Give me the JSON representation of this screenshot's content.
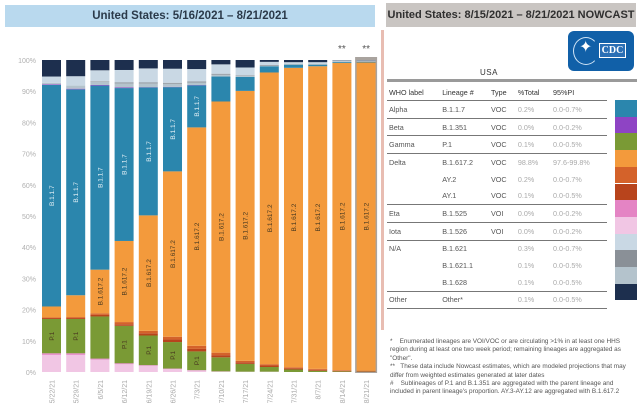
{
  "left_panel": {
    "title": "United States: 5/16/2021 – 8/21/2021",
    "nowcast_marker": "**"
  },
  "right_panel": {
    "title": "United States: 8/15/2021 – 8/21/2021 NOWCAST",
    "region": "USA",
    "logo_text": "CDC",
    "table": {
      "headers": [
        "WHO label",
        "Lineage #",
        "Type",
        "%Total",
        "95%PI"
      ],
      "rows": [
        {
          "who": "Alpha",
          "lineage": "B.1.1.7",
          "type": "VOC",
          "pct": "0.2%",
          "pi": "0.0-0.7%",
          "color": "#2b86ad",
          "group_start": true
        },
        {
          "who": "Beta",
          "lineage": "B.1.351",
          "type": "VOC",
          "pct": "0.0%",
          "pi": "0.0-0.2%",
          "color": "#8e44c4",
          "group_start": true
        },
        {
          "who": "Gamma",
          "lineage": "P.1",
          "type": "VOC",
          "pct": "0.1%",
          "pi": "0.0-0.5%",
          "color": "#7a9a35",
          "group_start": true
        },
        {
          "who": "Delta",
          "lineage": "B.1.617.2",
          "type": "VOC",
          "pct": "98.8%",
          "pi": "97.6-99.8%",
          "color": "#f39a3c",
          "group_start": true
        },
        {
          "who": "",
          "lineage": "AY.2",
          "type": "VOC",
          "pct": "0.2%",
          "pi": "0.0-0.7%",
          "color": "#d4622a",
          "group_start": false
        },
        {
          "who": "",
          "lineage": "AY.1",
          "type": "VOC",
          "pct": "0.1%",
          "pi": "0.0-0.5%",
          "color": "#b8441c",
          "group_start": false
        },
        {
          "who": "Eta",
          "lineage": "B.1.525",
          "type": "VOI",
          "pct": "0.0%",
          "pi": "0.0-0.2%",
          "color": "#e484c4",
          "group_start": true
        },
        {
          "who": "Iota",
          "lineage": "B.1.526",
          "type": "VOI",
          "pct": "0.0%",
          "pi": "0.0-0.2%",
          "color": "#f1c6e4",
          "group_start": true
        },
        {
          "who": "N/A",
          "lineage": "B.1.621",
          "type": "",
          "pct": "0.3%",
          "pi": "0.0-0.7%",
          "color": "#c9d8e4",
          "group_start": true
        },
        {
          "who": "",
          "lineage": "B.1.621.1",
          "type": "",
          "pct": "0.1%",
          "pi": "0.0-0.5%",
          "color": "#8a9097",
          "group_start": false
        },
        {
          "who": "",
          "lineage": "B.1.628",
          "type": "",
          "pct": "0.1%",
          "pi": "0.0-0.5%",
          "color": "#b4c3cc",
          "group_start": false
        },
        {
          "who": "Other",
          "lineage": "Other*",
          "type": "",
          "pct": "0.1%",
          "pi": "0.0-0.5%",
          "color": "#1d2f4e",
          "group_start": true
        }
      ]
    },
    "footnotes": [
      "*    Enumerated lineages are VOI/VOC or are circulating >1% in at least one HHS region during at least one two week period; remaining lineages are aggregated as \"Other\".",
      "**   These data include Nowcast estimates, which are modeled projections that may differ from weighted estimates generated at later dates",
      "#    Sublineages of P.1 and B.1.351 are aggregated with the parent lineage and included in parent lineage's proportion. AY.3-AY.12 are aggregated with B.1.617.2"
    ]
  },
  "chart_data": {
    "type": "bar",
    "stacked": true,
    "title": "United States: 5/16/2021 – 8/21/2021",
    "xlabel": "",
    "ylabel": "",
    "ylim": [
      0,
      100
    ],
    "yticks": [
      "0%",
      "10%",
      "20%",
      "30%",
      "40%",
      "50%",
      "60%",
      "70%",
      "80%",
      "90%",
      "100%"
    ],
    "categories": [
      "5/22/21",
      "5/29/21",
      "6/5/21",
      "6/12/21",
      "6/19/21",
      "6/26/21",
      "7/3/21",
      "7/10/21",
      "7/17/21",
      "7/24/21",
      "7/31/21",
      "8/7/21",
      "8/14/21",
      "8/21/21"
    ],
    "nowcast_categories": [
      "8/14/21",
      "8/21/21"
    ],
    "series": [
      {
        "name": "B.1.526",
        "color": "#f1c6e4",
        "values": [
          5.5,
          5.5,
          4.0,
          2.5,
          2.0,
          1.0,
          0.5,
          0.2,
          0.1,
          0.1,
          0.0,
          0.0,
          0.0,
          0.0
        ]
      },
      {
        "name": "B.1.525",
        "color": "#e484c4",
        "values": [
          0.5,
          0.5,
          0.3,
          0.3,
          0.2,
          0.1,
          0.1,
          0.0,
          0.0,
          0.0,
          0.0,
          0.0,
          0.0,
          0.0
        ]
      },
      {
        "name": "P.1",
        "color": "#7a9a35",
        "values": [
          11.0,
          11.0,
          13.5,
          12.0,
          9.5,
          8.5,
          6.0,
          4.5,
          2.5,
          1.5,
          0.8,
          0.4,
          0.2,
          0.1
        ]
      },
      {
        "name": "AY.1",
        "color": "#b8441c",
        "values": [
          0.3,
          0.3,
          0.5,
          0.5,
          0.7,
          0.8,
          0.8,
          0.7,
          0.5,
          0.5,
          0.4,
          0.3,
          0.2,
          0.1
        ]
      },
      {
        "name": "AY.2",
        "color": "#d4622a",
        "values": [
          0.2,
          0.3,
          0.5,
          0.7,
          0.8,
          0.9,
          1.0,
          0.8,
          0.5,
          0.4,
          0.3,
          0.3,
          0.2,
          0.2
        ]
      },
      {
        "name": "B.1.617.2",
        "color": "#f39a3c",
        "values": [
          3.5,
          7.0,
          14.0,
          26.0,
          37.0,
          53.0,
          70.0,
          80.5,
          86.5,
          93.5,
          96.0,
          97.0,
          98.3,
          98.8
        ]
      },
      {
        "name": "B.1.1.7",
        "color": "#2b86ad",
        "values": [
          71.0,
          66.0,
          59.0,
          49.0,
          41.0,
          27.0,
          13.5,
          8.0,
          4.5,
          2.0,
          1.0,
          0.5,
          0.3,
          0.2
        ]
      },
      {
        "name": "B.1.351",
        "color": "#8e44c4",
        "values": [
          0.2,
          0.2,
          0.2,
          0.2,
          0.1,
          0.1,
          0.1,
          0.0,
          0.0,
          0.0,
          0.0,
          0.0,
          0.0,
          0.0
        ]
      },
      {
        "name": "B.1.628",
        "color": "#b4c3cc",
        "values": [
          0.5,
          1.0,
          1.0,
          1.3,
          1.2,
          1.0,
          0.8,
          0.6,
          0.3,
          0.2,
          0.1,
          0.1,
          0.1,
          0.1
        ]
      },
      {
        "name": "B.1.621.1",
        "color": "#8a9097",
        "values": [
          0.0,
          0.0,
          0.2,
          0.3,
          0.3,
          0.3,
          0.3,
          0.3,
          0.2,
          0.2,
          0.1,
          0.1,
          0.1,
          0.1
        ]
      },
      {
        "name": "B.1.621",
        "color": "#c9d8e4",
        "values": [
          2.0,
          3.0,
          3.5,
          4.0,
          4.5,
          4.5,
          4.0,
          3.0,
          2.5,
          1.0,
          0.6,
          0.6,
          0.3,
          0.3
        ]
      },
      {
        "name": "Other",
        "color": "#1d2f4e",
        "values": [
          5.3,
          5.2,
          3.3,
          3.2,
          2.7,
          2.8,
          2.9,
          1.4,
          2.4,
          0.6,
          0.7,
          0.7,
          0.1,
          0.1
        ]
      }
    ],
    "bar_labels": [
      {
        "series": "B.1.1.7",
        "text": "B.1.1.7",
        "categories": [
          "5/22/21",
          "5/29/21",
          "6/5/21",
          "6/12/21",
          "6/19/21",
          "6/26/21",
          "7/3/21"
        ]
      },
      {
        "series": "B.1.617.2",
        "text": "B.1.617.2",
        "categories": [
          "6/5/21",
          "6/12/21",
          "6/19/21",
          "6/26/21",
          "7/3/21",
          "7/10/21",
          "7/17/21",
          "7/24/21",
          "7/31/21",
          "8/7/21",
          "8/14/21",
          "8/21/21"
        ]
      },
      {
        "series": "P.1",
        "text": "P.1",
        "categories": [
          "5/22/21",
          "5/29/21",
          "6/12/21",
          "6/19/21",
          "6/26/21",
          "7/3/21"
        ]
      }
    ]
  }
}
